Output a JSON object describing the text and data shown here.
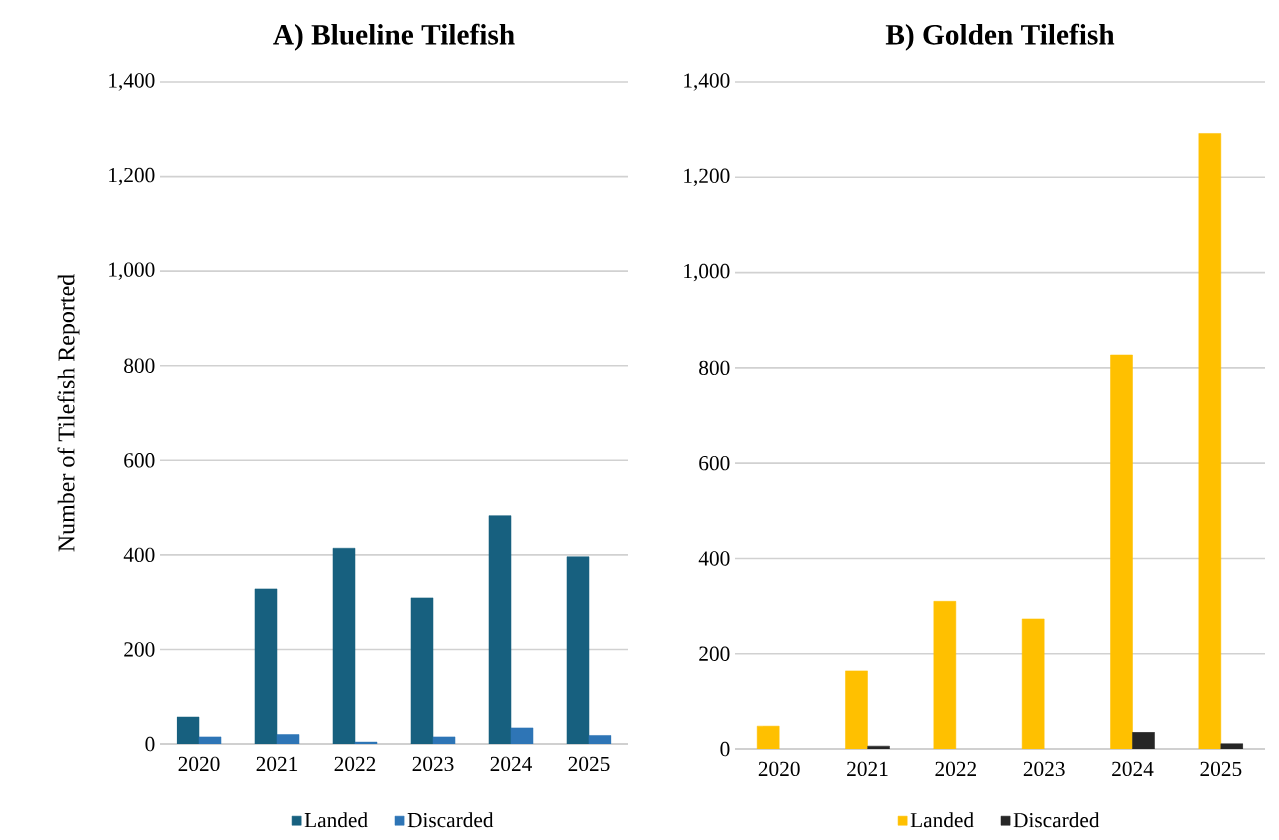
{
  "chart_data": [
    {
      "type": "bar",
      "title": "A) Blueline Tilefish",
      "ylabel": "Number of Tilefish Reported",
      "categories": [
        "2020",
        "2021",
        "2022",
        "2023",
        "2024",
        "2025"
      ],
      "series": [
        {
          "name": "Landed",
          "color": "#17607f",
          "values": [
            57,
            328,
            414,
            309,
            483,
            396
          ]
        },
        {
          "name": "Discarded",
          "color": "#2e75b6",
          "values": [
            15,
            20,
            4,
            15,
            34,
            18
          ]
        }
      ],
      "ylim": [
        0,
        1400
      ],
      "yticks": [
        0,
        200,
        400,
        600,
        800,
        {
          "value": 1000,
          "label": "1,000"
        },
        {
          "value": 1200,
          "label": "1,200"
        },
        {
          "value": 1400,
          "label": "1,400"
        }
      ],
      "grid": "y",
      "legend": "bottom"
    },
    {
      "type": "bar",
      "title": "B) Golden Tilefish",
      "categories": [
        "2020",
        "2021",
        "2022",
        "2023",
        "2024",
        "2025"
      ],
      "series": [
        {
          "name": "Landed",
          "color": "#ffc000",
          "values": [
            48,
            164,
            310,
            273,
            827,
            1292
          ]
        },
        {
          "name": "Discarded",
          "color": "#262626",
          "values": [
            null,
            6,
            null,
            null,
            35,
            11
          ]
        }
      ],
      "ylim": [
        0,
        1400
      ],
      "yticks": [
        0,
        200,
        400,
        600,
        800,
        {
          "value": 1000,
          "label": "1,000"
        },
        {
          "value": 1200,
          "label": "1,200"
        },
        {
          "value": 1400,
          "label": "1,400"
        }
      ],
      "grid": "y",
      "legend": "bottom"
    }
  ]
}
